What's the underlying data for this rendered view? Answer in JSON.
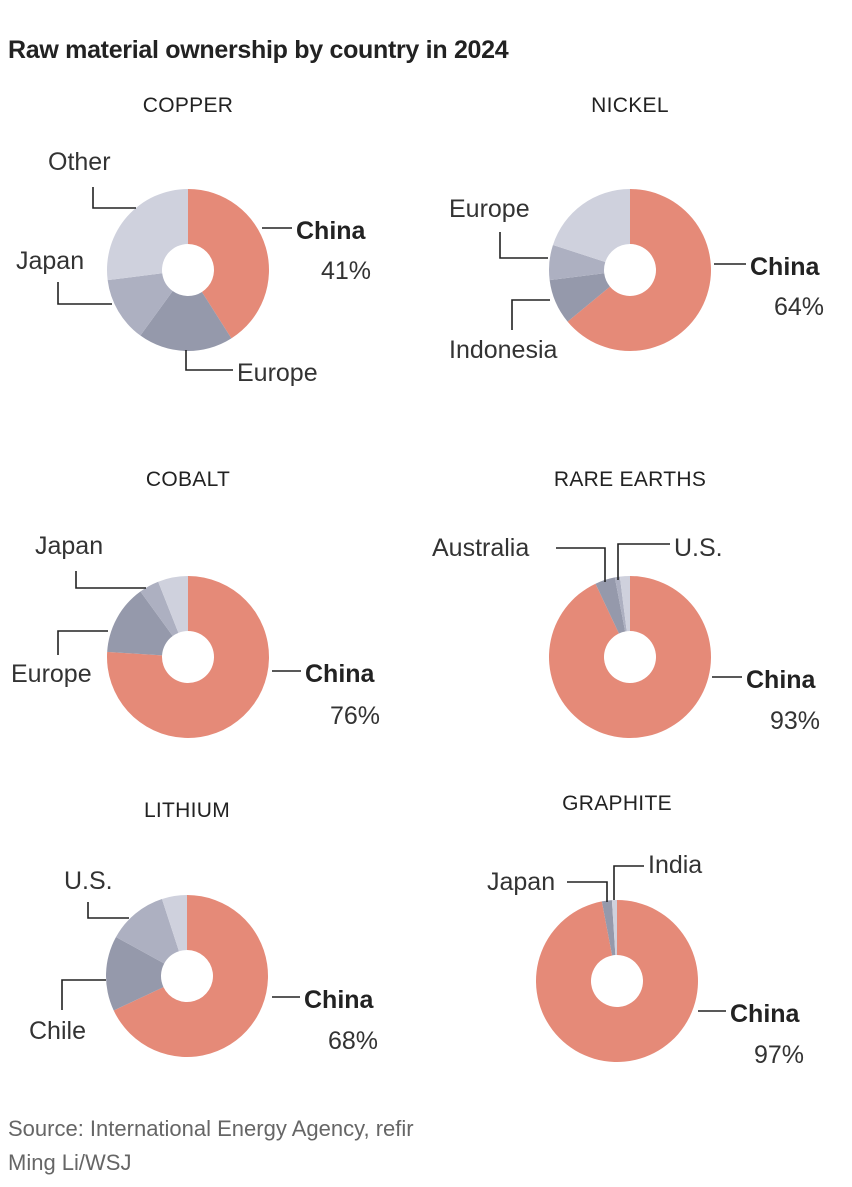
{
  "title": "Raw material ownership by country in 2024",
  "source_line1": "Source: International Energy Agency, refir",
  "source_line2": "Ming Li/WSJ",
  "colors": {
    "china": "#e58a78",
    "slice_dark": "#9599ab",
    "slice_mid": "#adb0c1",
    "slice_light": "#cfd1dd",
    "line": "#222222"
  },
  "chart_data": [
    {
      "type": "pie",
      "title": "COPPER",
      "slices": [
        {
          "name": "China",
          "value": 41,
          "label": "China",
          "value_label": "41%",
          "color": "china"
        },
        {
          "name": "Europe",
          "value": 19,
          "label": "Europe",
          "color": "slice_dark"
        },
        {
          "name": "Japan",
          "value": 13,
          "label": "Japan",
          "color": "slice_mid"
        },
        {
          "name": "Other",
          "value": 27,
          "label": "Other",
          "color": "slice_light"
        }
      ]
    },
    {
      "type": "pie",
      "title": "NICKEL",
      "slices": [
        {
          "name": "China",
          "value": 64,
          "label": "China",
          "value_label": "64%",
          "color": "china"
        },
        {
          "name": "Indonesia",
          "value": 9,
          "label": "Indonesia",
          "color": "slice_dark"
        },
        {
          "name": "Europe",
          "value": 7,
          "label": "Europe",
          "color": "slice_mid"
        },
        {
          "name": "Other",
          "value": 20,
          "color": "slice_light"
        }
      ]
    },
    {
      "type": "pie",
      "title": "COBALT",
      "slices": [
        {
          "name": "China",
          "value": 76,
          "label": "China",
          "value_label": "76%",
          "color": "china"
        },
        {
          "name": "Europe",
          "value": 14,
          "label": "Europe",
          "color": "slice_dark"
        },
        {
          "name": "Japan",
          "value": 4,
          "label": "Japan",
          "color": "slice_mid"
        },
        {
          "name": "Other",
          "value": 6,
          "color": "slice_light"
        }
      ]
    },
    {
      "type": "pie",
      "title": "RARE EARTHS",
      "slices": [
        {
          "name": "China",
          "value": 93,
          "label": "China",
          "value_label": "93%",
          "color": "china"
        },
        {
          "name": "Australia",
          "value": 4,
          "label": "Australia",
          "color": "slice_dark"
        },
        {
          "name": "Other",
          "value": 1,
          "color": "slice_mid"
        },
        {
          "name": "U.S.",
          "value": 2,
          "label": "U.S.",
          "color": "slice_light"
        }
      ]
    },
    {
      "type": "pie",
      "title": "LITHIUM",
      "slices": [
        {
          "name": "China",
          "value": 68,
          "label": "China",
          "value_label": "68%",
          "color": "china"
        },
        {
          "name": "Chile",
          "value": 15,
          "label": "Chile",
          "color": "slice_dark"
        },
        {
          "name": "U.S.",
          "value": 12,
          "label": "U.S.",
          "color": "slice_mid"
        },
        {
          "name": "Other",
          "value": 5,
          "color": "slice_light"
        }
      ]
    },
    {
      "type": "pie",
      "title": "GRAPHITE",
      "slices": [
        {
          "name": "China",
          "value": 97,
          "label": "China",
          "value_label": "97%",
          "color": "china"
        },
        {
          "name": "Japan",
          "value": 2,
          "label": "Japan",
          "color": "slice_dark"
        },
        {
          "name": "India",
          "value": 1,
          "label": "India",
          "color": "slice_light"
        }
      ]
    }
  ]
}
